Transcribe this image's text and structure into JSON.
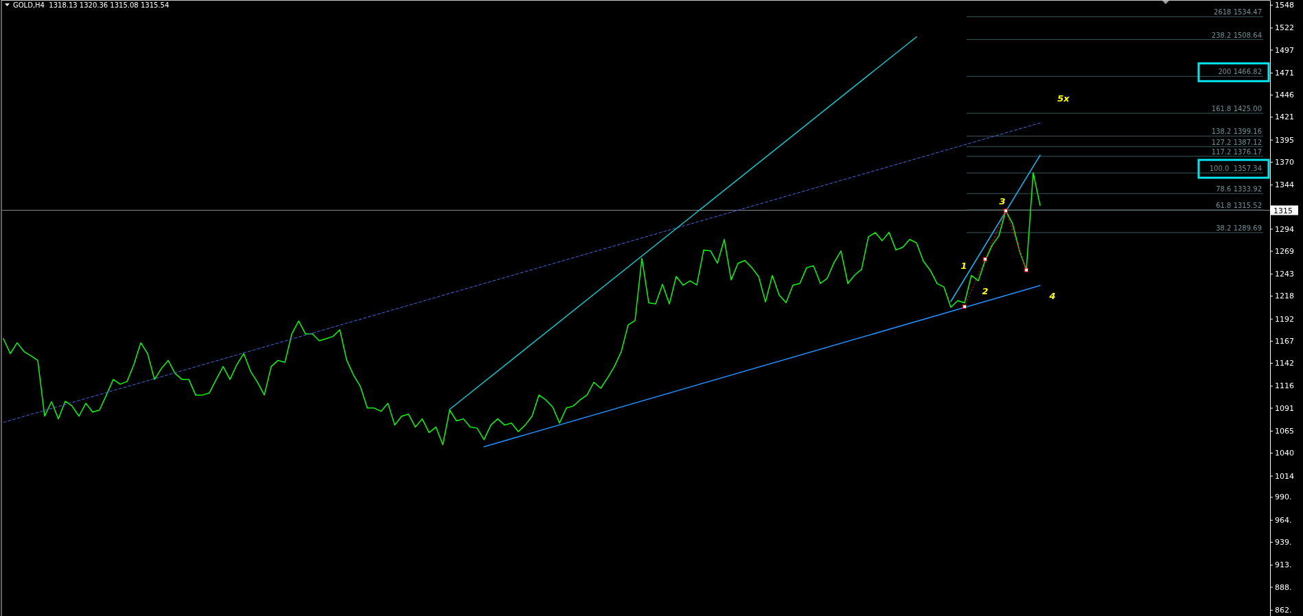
{
  "chart_data": {
    "type": "line",
    "title": "GOLD,H4  1318.13 1320.36 1315.08 1315.54",
    "categories": [
      null,
      null,
      null,
      null,
      null,
      null,
      null,
      null,
      null,
      null,
      null,
      null,
      null,
      null,
      null,
      null,
      null,
      null,
      null,
      null,
      null,
      null,
      null,
      null,
      null,
      null,
      null,
      null,
      null,
      null,
      null,
      null,
      null,
      null,
      null,
      null,
      null,
      null,
      null,
      null,
      null,
      null,
      null,
      null,
      null,
      null,
      null,
      null,
      null,
      null,
      null,
      null,
      null,
      null,
      null,
      null,
      null,
      null,
      null,
      null,
      null,
      null,
      null,
      null,
      null,
      null,
      null,
      null,
      null,
      null,
      null,
      null,
      null,
      null,
      null,
      null,
      null,
      null,
      null,
      null,
      null,
      null,
      null,
      null,
      null,
      null,
      null,
      null,
      null,
      null,
      null,
      null,
      null,
      null,
      null,
      null,
      null,
      null,
      null,
      null,
      null,
      null,
      null,
      null,
      null,
      null,
      null,
      null,
      null,
      null,
      null,
      null,
      null,
      null,
      null,
      null,
      null,
      null,
      null,
      null,
      null,
      null,
      null,
      null,
      null,
      null,
      null,
      null,
      null,
      null,
      null,
      null,
      null,
      null,
      null,
      null,
      null,
      null,
      null,
      null,
      null,
      null,
      null,
      null,
      null,
      null,
      null,
      null,
      null,
      null,
      null,
      null
    ],
    "ylim": [
      855,
      1553.4
    ],
    "tick_labels": "y",
    "yticks": [
      {
        "value": 1548,
        "label": "1548"
      },
      {
        "value": 1522,
        "label": "1522"
      },
      {
        "value": 1497,
        "label": "1497"
      },
      {
        "value": 1471,
        "label": "1471"
      },
      {
        "value": 1446,
        "label": "1446"
      },
      {
        "value": 1421,
        "label": "1421"
      },
      {
        "value": 1395,
        "label": "1395"
      },
      {
        "value": 1370,
        "label": "1370"
      },
      {
        "value": 1344,
        "label": "1344"
      },
      {
        "value": 1294,
        "label": "1294"
      },
      {
        "value": 1269,
        "label": "1269"
      },
      {
        "value": 1243,
        "label": "1243"
      },
      {
        "value": 1218,
        "label": "1218"
      },
      {
        "value": 1192,
        "label": "1192"
      },
      {
        "value": 1167,
        "label": "1167"
      },
      {
        "value": 1142,
        "label": "1142"
      },
      {
        "value": 1116,
        "label": "1116"
      },
      {
        "value": 1091,
        "label": "1091"
      },
      {
        "value": 1065,
        "label": "1065"
      },
      {
        "value": 1040,
        "label": "1040"
      },
      {
        "value": 1014,
        "label": "1014"
      },
      {
        "value": 990,
        "label": "990."
      },
      {
        "value": 964,
        "label": "964."
      },
      {
        "value": 939,
        "label": "939."
      },
      {
        "value": 913,
        "label": "913."
      },
      {
        "value": 888,
        "label": "888."
      },
      {
        "value": 862,
        "label": "862."
      }
    ],
    "ref_lines": [
      {
        "axis": "y",
        "value": 1315,
        "label": "1315",
        "color": "#8c8c8c"
      },
      {
        "axis": "y",
        "value": 1534.47,
        "label": "2618 1534.47",
        "color": "#3a5a5a"
      },
      {
        "axis": "y",
        "value": 1508.64,
        "label": "238.2 1508.64",
        "color": "#3a5a5a"
      },
      {
        "axis": "y",
        "value": 1466.82,
        "label": "200 1466.82",
        "color": "#3a5a5a"
      },
      {
        "axis": "y",
        "value": 1425.0,
        "label": "161.8 1425.00",
        "color": "#3a5a5a"
      },
      {
        "axis": "y",
        "value": 1399.16,
        "label": "138.2 1399.16",
        "color": "#3a5a5a"
      },
      {
        "axis": "y",
        "value": 1387.12,
        "label": "127.2 1387.12",
        "color": "#3a5a5a"
      },
      {
        "axis": "y",
        "value": 1376.17,
        "label": "117.2 1376.17",
        "color": "#3a5a5a"
      },
      {
        "axis": "y",
        "value": 1357.34,
        "label": "100.0  1357.34",
        "color": "#3a5a5a"
      },
      {
        "axis": "y",
        "value": 1333.92,
        "label": "78.6 1333.92",
        "color": "#3a5a5a"
      },
      {
        "axis": "y",
        "value": 1315.52,
        "label": "61.8 1315.52",
        "color": "#3a5a5a"
      },
      {
        "axis": "y",
        "value": 1289.69,
        "label": "38.2 1289.69",
        "color": "#3a5a5a"
      }
    ],
    "annotations": [
      "1",
      "2",
      "3",
      "4",
      "5x"
    ],
    "series": [
      {
        "color": "#00ff00",
        "values": [
          1169.4,
          1152.5,
          1164.8,
          1154.8,
          1150,
          1144.8,
          1081.5,
          1098,
          1078.5,
          1098.5,
          1093.1,
          1081.5,
          1096.2,
          1086.2,
          1088.5,
          1105.5,
          1123.2,
          1117.8,
          1120.9,
          1140.1,
          1164.8,
          1152.5,
          1123.2,
          1135.5,
          1144.8,
          1130,
          1123.2,
          1123.2,
          1105.5,
          1105.5,
          1108,
          1123.2,
          1137.8,
          1123.2,
          1140,
          1152.5,
          1132.4,
          1120.1,
          1105.5,
          1137.8,
          1144.8,
          1142.5,
          1174.8,
          1189.5,
          1174.8,
          1174.8,
          1167.1,
          1169.4,
          1172,
          1179.5,
          1145,
          1128,
          1115,
          1090.8,
          1090.8,
          1087,
          1096.2,
          1071.5,
          1081.5,
          1083.9,
          1069.2,
          1078.5,
          1063,
          1069.2,
          1049.2,
          1088.5,
          1076.2,
          1078.5,
          1069.2,
          1068,
          1055,
          1071.5,
          1078.5,
          1071.5,
          1073.8,
          1064,
          1071.5,
          1081.5,
          1105.5,
          1100,
          1092,
          1073.8,
          1090.8,
          1093.1,
          1100,
          1105.5,
          1120,
          1113.2,
          1125,
          1138,
          1154.8,
          1185,
          1190,
          1260.4,
          1210,
          1208.8,
          1231.1,
          1208.8,
          1240,
          1230,
          1235,
          1230.4,
          1270,
          1268.9,
          1255,
          1282.0,
          1236,
          1255,
          1258,
          1250,
          1240,
          1211.1,
          1241.1,
          1218.8,
          1210.3,
          1230,
          1232,
          1250,
          1252,
          1232,
          1238,
          1255.8,
          1268.9,
          1232,
          1241.5,
          1248,
          1285,
          1289.7,
          1280.5,
          1290,
          1270,
          1273,
          1282,
          1278,
          1257.3,
          1247,
          1231.9,
          1228,
          1205,
          1212.6,
          1210,
          1241.1,
          1235.0,
          1258,
          1275.1,
          1286,
          1314.4,
          1299.7,
          1268.9,
          1247.3,
          1357.6,
          1320.6
        ]
      },
      {
        "color": "#4169e1",
        "line_style": "dashed",
        "values": [
          1074.6,
          null,
          null,
          null,
          null,
          null,
          null,
          null,
          null,
          null,
          null,
          null,
          null,
          null,
          null,
          null,
          null,
          null,
          null,
          null,
          null,
          null,
          null,
          null,
          null,
          null,
          null,
          null,
          null,
          null,
          null,
          null,
          null,
          null,
          null,
          null,
          null,
          null,
          null,
          null,
          null,
          null,
          null,
          null,
          null,
          null,
          null,
          null,
          null,
          null,
          null,
          null,
          null,
          null,
          null,
          null,
          null,
          null,
          null,
          null,
          null,
          null,
          null,
          null,
          null,
          null,
          null,
          null,
          null,
          null,
          null,
          null,
          null,
          null,
          null,
          null,
          null,
          null,
          null,
          null,
          null,
          null,
          null,
          null,
          null,
          null,
          null,
          null,
          null,
          null,
          null,
          null,
          null,
          null,
          null,
          null,
          null,
          null,
          null,
          null,
          null,
          null,
          null,
          null,
          null,
          null,
          null,
          null,
          null,
          null,
          null,
          null,
          null,
          null,
          null,
          null,
          null,
          null,
          null,
          null,
          null,
          null,
          null,
          null,
          null,
          null,
          null,
          null,
          null,
          null,
          null,
          null,
          null,
          null,
          null,
          null,
          null,
          null,
          null,
          null,
          null,
          null,
          null,
          null,
          null,
          null,
          null,
          null,
          null,
          null,
          null,
          1414.0
        ]
      },
      {
        "color": "#1e90ff",
        "values": [
          null,
          null,
          null,
          null,
          null,
          null,
          null,
          null,
          null,
          null,
          null,
          null,
          null,
          null,
          null,
          null,
          null,
          null,
          null,
          null,
          null,
          null,
          null,
          null,
          null,
          null,
          null,
          null,
          null,
          null,
          null,
          null,
          null,
          null,
          null,
          null,
          null,
          null,
          null,
          null,
          null,
          null,
          null,
          null,
          null,
          null,
          null,
          null,
          null,
          null,
          null,
          null,
          null,
          null,
          null,
          null,
          null,
          null,
          null,
          null,
          null,
          null,
          null,
          null,
          null,
          null,
          null,
          null,
          null,
          null,
          1046.9,
          null,
          null,
          null,
          null,
          null,
          null,
          null,
          null,
          null,
          null,
          null,
          null,
          null,
          null,
          null,
          null,
          null,
          null,
          null,
          null,
          null,
          null,
          null,
          null,
          null,
          null,
          null,
          null,
          null,
          null,
          null,
          null,
          null,
          null,
          null,
          null,
          null,
          null,
          null,
          null,
          null,
          null,
          null,
          null,
          null,
          null,
          null,
          null,
          null,
          null,
          null,
          null,
          null,
          null,
          null,
          null,
          null,
          null,
          null,
          null,
          null,
          null,
          null,
          null,
          null,
          null,
          null,
          null,
          null,
          null,
          null,
          null,
          null,
          null,
          null,
          null,
          null,
          null,
          null,
          null,
          1229.6
        ]
      },
      {
        "color": "#00ced1",
        "values": [
          null,
          null,
          null,
          null,
          null,
          null,
          null,
          null,
          null,
          null,
          null,
          null,
          null,
          null,
          null,
          null,
          null,
          null,
          null,
          null,
          null,
          null,
          null,
          null,
          null,
          null,
          null,
          null,
          null,
          null,
          null,
          null,
          null,
          null,
          null,
          null,
          null,
          null,
          null,
          null,
          null,
          null,
          null,
          null,
          null,
          null,
          null,
          null,
          null,
          null,
          null,
          null,
          null,
          null,
          null,
          null,
          null,
          null,
          null,
          null,
          null,
          null,
          null,
          null,
          null,
          1089.3,
          null,
          null,
          null,
          null,
          null,
          null,
          null,
          null,
          null,
          null,
          null,
          null,
          null,
          null,
          null,
          null,
          null,
          null,
          null,
          null,
          null,
          null,
          null,
          null,
          null,
          null,
          null,
          null,
          null,
          null,
          null,
          null,
          null,
          null,
          null,
          null,
          null,
          null,
          null,
          null,
          null,
          null,
          null,
          null,
          null,
          null,
          null,
          null,
          null,
          null,
          null,
          null,
          null,
          null,
          null,
          null,
          null,
          null,
          null,
          null,
          null,
          null,
          null,
          null,
          null,
          null,
          null,
          1511.6,
          null,
          null,
          null,
          null,
          null,
          null,
          null,
          null,
          null,
          null,
          null,
          null,
          null,
          null,
          null,
          null,
          null,
          null
        ]
      },
      {
        "color": "#00bfff",
        "values": [
          null,
          null,
          null,
          null,
          null,
          null,
          null,
          null,
          null,
          null,
          null,
          null,
          null,
          null,
          null,
          null,
          null,
          null,
          null,
          null,
          null,
          null,
          null,
          null,
          null,
          null,
          null,
          null,
          null,
          null,
          null,
          null,
          null,
          null,
          null,
          null,
          null,
          null,
          null,
          null,
          null,
          null,
          null,
          null,
          null,
          null,
          null,
          null,
          null,
          null,
          null,
          null,
          null,
          null,
          null,
          null,
          null,
          null,
          null,
          null,
          null,
          null,
          null,
          null,
          null,
          null,
          null,
          null,
          null,
          null,
          null,
          null,
          null,
          null,
          null,
          null,
          null,
          null,
          null,
          null,
          null,
          null,
          null,
          null,
          null,
          null,
          null,
          null,
          null,
          null,
          null,
          null,
          null,
          null,
          null,
          null,
          null,
          null,
          null,
          null,
          null,
          null,
          null,
          null,
          null,
          null,
          null,
          null,
          null,
          null,
          null,
          null,
          null,
          null,
          null,
          null,
          null,
          null,
          null,
          null,
          null,
          null,
          null,
          null,
          null,
          null,
          null,
          null,
          null,
          null,
          null,
          null,
          null,
          null,
          null,
          null,
          null,
          null,
          1211.6,
          null,
          null,
          null,
          null,
          null,
          null,
          null,
          null,
          null,
          null,
          null,
          null,
          1377.4
        ]
      },
      {
        "color": "#ff0000",
        "line_style": "dotted",
        "marker": "square",
        "values": [
          null,
          null,
          null,
          null,
          null,
          null,
          null,
          null,
          null,
          null,
          null,
          null,
          null,
          null,
          null,
          null,
          null,
          null,
          null,
          null,
          null,
          null,
          null,
          null,
          null,
          null,
          null,
          null,
          null,
          null,
          null,
          null,
          null,
          null,
          null,
          null,
          null,
          null,
          null,
          null,
          null,
          null,
          null,
          null,
          null,
          null,
          null,
          null,
          null,
          null,
          null,
          null,
          null,
          null,
          null,
          null,
          null,
          null,
          null,
          null,
          null,
          null,
          null,
          null,
          null,
          null,
          null,
          null,
          null,
          null,
          null,
          null,
          null,
          null,
          null,
          null,
          null,
          null,
          null,
          null,
          null,
          null,
          null,
          null,
          null,
          null,
          null,
          null,
          null,
          null,
          null,
          null,
          null,
          null,
          null,
          null,
          null,
          null,
          null,
          null,
          null,
          null,
          null,
          null,
          null,
          null,
          null,
          null,
          null,
          null,
          null,
          null,
          null,
          null,
          null,
          null,
          null,
          null,
          null,
          null,
          null,
          null,
          null,
          null,
          null,
          null,
          null,
          null,
          null,
          null,
          null,
          null,
          null,
          null,
          null,
          null,
          null,
          null,
          null,
          null,
          1205.7,
          null,
          null,
          1259.6,
          null,
          null,
          1314.4,
          null,
          null,
          1247.3,
          null,
          null
        ]
      }
    ]
  }
}
